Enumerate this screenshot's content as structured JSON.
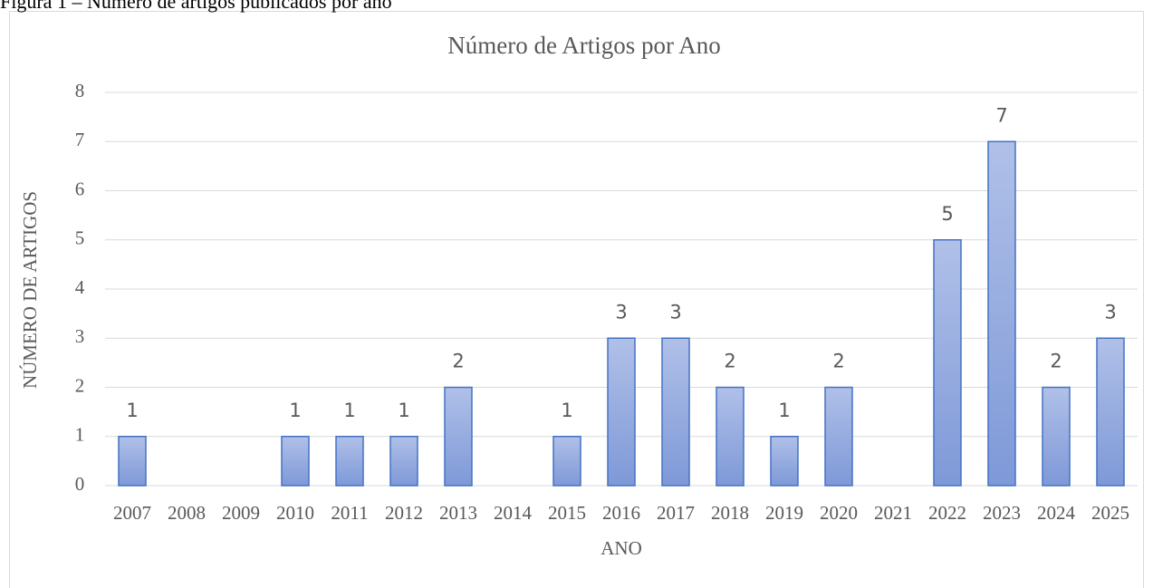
{
  "caption": "Figura 1 – Número de artigos publicados por ano",
  "chart_data": {
    "type": "bar",
    "title": "Número de Artigos por Ano",
    "x_label": "ANO",
    "y_label": "NÚMERO DE ARTIGOS",
    "categories": [
      "2007",
      "2008",
      "2009",
      "2010",
      "2011",
      "2012",
      "2013",
      "2014",
      "2015",
      "2016",
      "2017",
      "2018",
      "2019",
      "2020",
      "2021",
      "2022",
      "2023",
      "2024",
      "2025"
    ],
    "values": [
      1,
      null,
      null,
      1,
      1,
      1,
      2,
      null,
      1,
      3,
      3,
      2,
      1,
      2,
      null,
      5,
      7,
      2,
      3
    ],
    "color": "#4472c4",
    "ylim": [
      0,
      8
    ],
    "yticks": [
      0,
      1,
      2,
      3,
      4,
      5,
      6,
      7,
      8
    ],
    "grid": true
  }
}
